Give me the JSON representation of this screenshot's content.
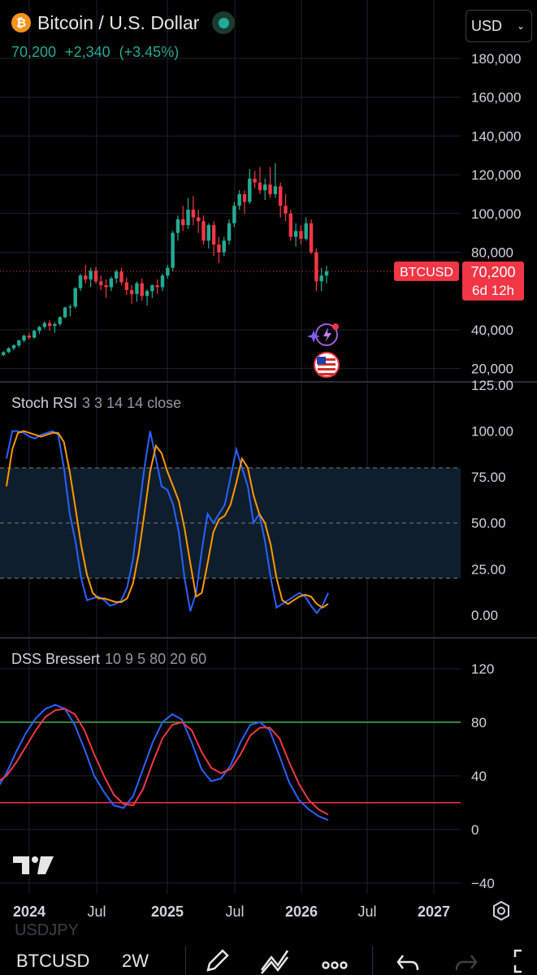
{
  "header": {
    "coin_icon": "bitcoin-icon",
    "coin_glyph": "₿",
    "title": "Bitcoin / U.S. Dollar",
    "price": "70,200",
    "change": "+2,340",
    "change_pct": "(+3.45%)",
    "status": "market-open-dot",
    "currency": "USD"
  },
  "colors": {
    "up": "#22ab94",
    "down": "#f23645",
    "background": "#000000",
    "grid": "#1e222d",
    "axis_text": "#d1d4dc",
    "stoch_k": "#2962ff",
    "stoch_d": "#ff9800",
    "dss_blue": "#2962ff",
    "dss_red": "#f23645",
    "upper_line": "#4caf50",
    "lower_line": "#f23645"
  },
  "chart_data": [
    {
      "type": "candlestick",
      "panel": "price",
      "interval": "2W",
      "x_ticks": [
        "2024",
        "Jul",
        "2025",
        "Jul",
        "2026",
        "Jul",
        "2027"
      ],
      "y_ticks": [
        "180,000",
        "160,000",
        "140,000",
        "120,000",
        "100,000",
        "80,000",
        "40,000",
        "20,000"
      ],
      "ylim": [
        14000,
        185000
      ],
      "current_price_label": "BTCUSD",
      "current_price": "70,200",
      "countdown": "6d 12h",
      "marker_icons": [
        "ai-sparkle-icon",
        "us-flag-icon"
      ],
      "candles": [
        [
          26000,
          27500,
          25000,
          27000
        ],
        [
          27000,
          29000,
          26500,
          28500
        ],
        [
          28500,
          31000,
          28000,
          30500
        ],
        [
          30500,
          32500,
          29500,
          32000
        ],
        [
          32000,
          35000,
          31000,
          34500
        ],
        [
          34500,
          37500,
          33500,
          37000
        ],
        [
          37000,
          38500,
          35000,
          36000
        ],
        [
          36000,
          40000,
          35500,
          39500
        ],
        [
          39500,
          42000,
          38000,
          41500
        ],
        [
          41500,
          44500,
          40500,
          43500
        ],
        [
          43500,
          45000,
          39500,
          42000
        ],
        [
          42000,
          44000,
          38500,
          43000
        ],
        [
          43000,
          47000,
          42000,
          46500
        ],
        [
          46500,
          52000,
          46000,
          51500
        ],
        [
          51500,
          53000,
          47000,
          52000
        ],
        [
          52000,
          62000,
          51000,
          61500
        ],
        [
          61500,
          69000,
          60000,
          68000
        ],
        [
          68000,
          73500,
          64000,
          66000
        ],
        [
          66000,
          72000,
          62000,
          70500
        ],
        [
          70500,
          72500,
          64000,
          65000
        ],
        [
          65000,
          68000,
          60500,
          63000
        ],
        [
          63000,
          66000,
          56500,
          62000
        ],
        [
          62000,
          67500,
          60000,
          66500
        ],
        [
          66500,
          71000,
          64000,
          70000
        ],
        [
          70000,
          72000,
          63000,
          64500
        ],
        [
          64500,
          67000,
          58000,
          60500
        ],
        [
          60500,
          63000,
          53500,
          58500
        ],
        [
          58500,
          65000,
          54500,
          64000
        ],
        [
          64000,
          66500,
          55000,
          57500
        ],
        [
          57500,
          61000,
          52500,
          60000
        ],
        [
          60000,
          63500,
          56500,
          63000
        ],
        [
          63000,
          66000,
          58500,
          62000
        ],
        [
          62000,
          69000,
          60000,
          68000
        ],
        [
          68000,
          73500,
          66500,
          72000
        ],
        [
          72000,
          91000,
          70000,
          90000
        ],
        [
          90000,
          99000,
          86000,
          97000
        ],
        [
          97000,
          104000,
          91000,
          94000
        ],
        [
          94000,
          108000,
          92000,
          102000
        ],
        [
          102000,
          109000,
          94000,
          98000
        ],
        [
          98000,
          102000,
          90000,
          96000
        ],
        [
          96000,
          99000,
          84000,
          86000
        ],
        [
          86000,
          95000,
          82000,
          94000
        ],
        [
          94000,
          96000,
          78000,
          84000
        ],
        [
          84000,
          88000,
          74500,
          80000
        ],
        [
          80000,
          88000,
          78000,
          86000
        ],
        [
          86000,
          97000,
          84000,
          95000
        ],
        [
          95000,
          106000,
          93000,
          104000
        ],
        [
          104000,
          112000,
          102000,
          110000
        ],
        [
          110000,
          112000,
          100000,
          106000
        ],
        [
          106000,
          123000,
          105000,
          118000
        ],
        [
          118000,
          122000,
          113000,
          116000
        ],
        [
          116000,
          124000,
          110000,
          112000
        ],
        [
          112000,
          118000,
          107000,
          115000
        ],
        [
          115000,
          124000,
          108000,
          110000
        ],
        [
          110000,
          126000,
          108000,
          114000
        ],
        [
          114000,
          116000,
          98000,
          104000
        ],
        [
          104000,
          110000,
          96000,
          100000
        ],
        [
          100000,
          102000,
          86000,
          88000
        ],
        [
          88000,
          95000,
          83000,
          91000
        ],
        [
          91000,
          94000,
          84000,
          87000
        ],
        [
          87000,
          98000,
          86000,
          95000
        ],
        [
          95000,
          97000,
          79000,
          80000
        ],
        [
          80000,
          82000,
          60000,
          65000
        ],
        [
          65000,
          72000,
          60000,
          68000
        ],
        [
          68000,
          73000,
          64000,
          70200
        ]
      ]
    },
    {
      "type": "line",
      "panel": "indicator",
      "name": "Stoch RSI",
      "params": "3 3 14 14 close",
      "y_ticks": [
        "125.00",
        "100.00",
        "75.00",
        "50.00",
        "25.00",
        "0.00"
      ],
      "ylim": [
        -12,
        125
      ],
      "band": [
        20,
        80
      ],
      "series": [
        {
          "values": [
            85,
            100,
            100,
            99,
            97,
            96,
            98,
            99,
            100,
            98,
            80,
            55,
            40,
            20,
            8,
            9,
            10,
            8,
            5,
            6,
            8,
            15,
            30,
            55,
            80,
            100,
            85,
            70,
            68,
            60,
            45,
            20,
            2,
            12,
            35,
            55,
            50,
            55,
            60,
            75,
            90,
            80,
            70,
            50,
            55,
            40,
            20,
            4,
            6,
            8,
            10,
            12,
            10,
            5,
            1,
            5,
            12
          ]
        },
        {
          "values": [
            70,
            90,
            99,
            100,
            99,
            98,
            97,
            98,
            99,
            99,
            94,
            78,
            58,
            38,
            22,
            12,
            9,
            9,
            8,
            7,
            7,
            9,
            17,
            33,
            55,
            78,
            92,
            88,
            78,
            70,
            62,
            47,
            28,
            10,
            12,
            28,
            45,
            52,
            54,
            60,
            72,
            85,
            80,
            65,
            55,
            50,
            38,
            20,
            8,
            6,
            8,
            10,
            11,
            10,
            6,
            4,
            6
          ]
        }
      ]
    },
    {
      "type": "line",
      "panel": "indicator",
      "name": "DSS Bressert",
      "params": "10 9 5 80 20 60",
      "y_ticks": [
        "120",
        "80",
        "40",
        "0",
        "−40"
      ],
      "ylim": [
        -48,
        140
      ],
      "hlines": [
        80,
        20
      ],
      "series": [
        {
          "values": [
            30,
            42,
            58,
            72,
            83,
            90,
            93,
            90,
            78,
            60,
            40,
            28,
            18,
            16,
            25,
            45,
            65,
            80,
            86,
            82,
            65,
            45,
            36,
            38,
            48,
            65,
            78,
            80,
            74,
            55,
            35,
            22,
            15,
            10,
            7
          ]
        },
        {
          "values": [
            35,
            40,
            50,
            62,
            74,
            84,
            89,
            90,
            86,
            74,
            56,
            40,
            26,
            19,
            18,
            30,
            50,
            68,
            78,
            80,
            74,
            58,
            46,
            42,
            45,
            56,
            70,
            76,
            76,
            68,
            50,
            34,
            22,
            15,
            11
          ]
        }
      ]
    }
  ],
  "toolbar": {
    "symbol": "BTCUSD",
    "interval": "2W",
    "faded_symbol": "USDJPY",
    "icons": [
      "draw-icon",
      "indicators-icon",
      "more-icon",
      "undo-icon",
      "redo-icon",
      "fullscreen-icon"
    ],
    "logo": "tradingview-logo",
    "settings_icon": "settings-icon"
  }
}
